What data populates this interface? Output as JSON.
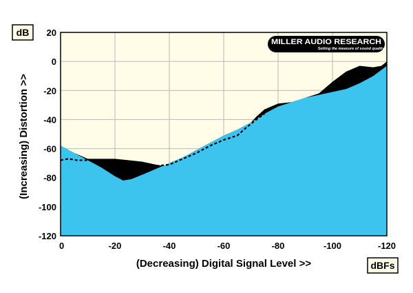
{
  "chart_data": {
    "type": "area",
    "xlabel": "(Decreasing) Digital Signal Level >>",
    "ylabel": "(Increasing) Distortion >>",
    "x_unit": "dBFs",
    "y_unit": "dB",
    "xlim": [
      0,
      -120
    ],
    "ylim": [
      -120,
      20
    ],
    "x_ticks": [
      0,
      -20,
      -40,
      -60,
      -80,
      -100,
      -120
    ],
    "y_ticks": [
      20,
      0,
      -20,
      -40,
      -60,
      -80,
      -100,
      -120
    ],
    "x_tick_labels": [
      "0",
      "-20",
      "-40",
      "-60",
      "-80",
      "-100",
      "-120"
    ],
    "y_tick_labels": [
      "20",
      "0",
      "-20",
      "-40",
      "-60",
      "-80",
      "-100",
      "-120"
    ],
    "grid": true,
    "logo": {
      "brand": "MILLER AUDIO RESEARCH",
      "tagline": "Setting the measure of sound quality"
    },
    "series": [
      {
        "style": "filled-blue-area",
        "color": "#3cc4ee",
        "x": [
          0,
          -5,
          -10,
          -15,
          -20,
          -23,
          -26,
          -30,
          -35,
          -40,
          -45,
          -50,
          -55,
          -60,
          -65,
          -70,
          -75,
          -80,
          -85,
          -90,
          -95,
          -100,
          -105,
          -110,
          -115,
          -120
        ],
        "y": [
          -58,
          -63,
          -68,
          -73,
          -79,
          -82,
          -81,
          -78,
          -74,
          -70,
          -66,
          -61,
          -56,
          -51,
          -47,
          -42,
          -36,
          -31,
          -28,
          -25,
          -23,
          -21,
          -19,
          -15,
          -10,
          -3
        ]
      },
      {
        "style": "black-filled-upper-envelope",
        "color": "#000000",
        "x": [
          0,
          -5,
          -10,
          -15,
          -20,
          -25,
          -30,
          -35,
          -38,
          -40,
          -45,
          -50,
          -55,
          -60,
          -65,
          -70,
          -72,
          -75,
          -80,
          -85,
          -90,
          -95,
          -100,
          -105,
          -110,
          -115,
          -118,
          -120
        ],
        "y": [
          -58,
          -63,
          -67,
          -67,
          -67,
          -68,
          -69,
          -71,
          -72,
          -70,
          -66,
          -61,
          -56,
          -51,
          -47,
          -42,
          -38,
          -33,
          -29,
          -28,
          -25,
          -22,
          -14,
          -7,
          -3,
          -4,
          -3,
          0
        ]
      },
      {
        "style": "dashed-line",
        "color": "#000000",
        "x": [
          0,
          -3,
          -6,
          -10,
          -15,
          -20,
          -25,
          -30,
          -35,
          -40,
          -45,
          -50,
          -55,
          -60,
          -65,
          -68,
          -72,
          -75
        ],
        "y": [
          -68,
          -67,
          -68,
          -68,
          -69,
          -70,
          -71,
          -72,
          -72,
          -71,
          -67,
          -63,
          -58,
          -54,
          -51,
          -46,
          -40,
          -36
        ]
      }
    ]
  }
}
